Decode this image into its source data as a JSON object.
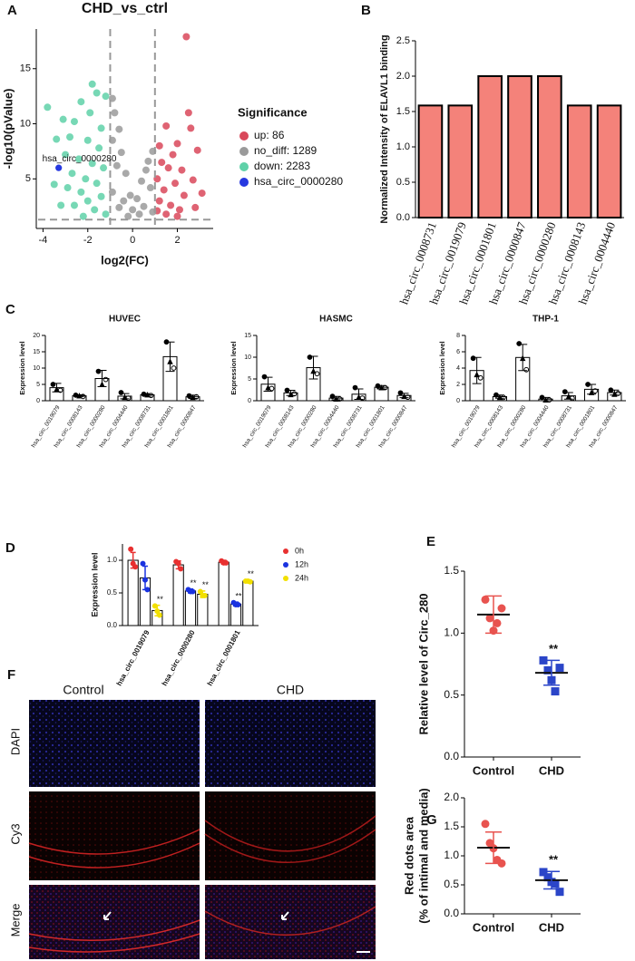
{
  "chart_data": [
    {
      "type": "scatter",
      "panel_label": "A",
      "title": "CHD_vs_ctrl",
      "xlabel": "log2(FC)",
      "ylabel": "-log10(pValue)",
      "legend_title": "Significance",
      "xlim": [
        -4.3,
        3.6
      ],
      "ylim": [
        0.5,
        18.6
      ],
      "xticks": [
        -4,
        -2,
        0,
        2
      ],
      "yticks": [
        5,
        10,
        15
      ],
      "thresholds": {
        "x": [
          -1,
          1
        ],
        "y": 1.3
      },
      "annotation": "hsa_circ_0000280",
      "series": [
        {
          "name": "up: 86",
          "color": "#d9485a",
          "x": [
            2.4,
            2.5,
            2.6,
            1.5,
            1.2,
            2.0,
            1.8,
            2.9,
            1.3,
            1.6,
            2.2,
            1.1,
            1.9,
            2.7,
            1.4,
            2.3,
            3.1,
            1.2,
            1.7,
            2.1,
            2.8,
            1.5,
            1.1,
            2.0
          ],
          "y": [
            17.9,
            11,
            9.6,
            9.8,
            8,
            8.2,
            7.2,
            7.6,
            6.5,
            6,
            5.8,
            5,
            4.6,
            4.9,
            4,
            3.5,
            3.7,
            3,
            2.6,
            2.2,
            2.4,
            1.8,
            2.1,
            1.6
          ]
        },
        {
          "name": "no_diff: 1289",
          "color": "#9a9a9a",
          "x": [
            -0.9,
            -0.8,
            -0.6,
            -0.9,
            -0.5,
            -0.3,
            -0.7,
            -0.1,
            0.2,
            0.4,
            0.7,
            0.9,
            0.6,
            0.8,
            -0.4,
            0.0,
            0.3,
            -0.2,
            0.5,
            -0.6,
            0.9,
            -0.9
          ],
          "y": [
            12.3,
            11,
            9.5,
            8.5,
            7.4,
            5.5,
            6.2,
            3.5,
            3.2,
            4.8,
            6.6,
            7.5,
            5.8,
            4.2,
            3,
            2.2,
            1.8,
            1.6,
            2.5,
            2.4,
            2,
            3.8
          ]
        },
        {
          "name": "down: 2283",
          "color": "#5fd1a8",
          "x": [
            -1.8,
            -1.6,
            -2.3,
            -1.2,
            -3.8,
            -3.1,
            -2.6,
            -1.9,
            -1.4,
            -3.4,
            -2.8,
            -2.0,
            -1.5,
            -3.0,
            -2.4,
            -1.8,
            -1.3,
            -2.7,
            -2.1,
            -1.6,
            -3.5,
            -2.9,
            -2.3,
            -1.4,
            -2.0,
            -2.6,
            -1.7,
            -3.2,
            -1.2,
            -2.2
          ],
          "y": [
            13.6,
            12.8,
            12,
            12.5,
            11.5,
            10.4,
            10.2,
            11,
            9.6,
            8.6,
            8.8,
            8.5,
            7.8,
            7.2,
            6.8,
            6.4,
            6,
            5.5,
            5,
            4.6,
            4.5,
            4.2,
            3.8,
            3.4,
            3,
            2.6,
            2.2,
            2.6,
            1.8,
            1.6
          ]
        },
        {
          "name": "hsa_circ_0000280",
          "color": "#2638e0",
          "x": [
            -3.3
          ],
          "y": [
            6.0
          ]
        }
      ]
    },
    {
      "type": "bar",
      "panel_label": "B",
      "ylabel": "Normalized Intensity of ELAVL1 binding",
      "color": "#f4827a",
      "edgecolor": "#000000",
      "categories": [
        "hsa_circ_0008731",
        "hsa_circ_0019079",
        "hsa_circ_0001801",
        "hsa_circ_0000847",
        "hsa_circ_0000280",
        "hsa_circ_0008143",
        "hsa_circ_0004440"
      ],
      "values": [
        1.585,
        1.585,
        2,
        2,
        2,
        1.585,
        1.585
      ],
      "ylim": [
        0,
        2.5
      ],
      "yticks": [
        {
          "value": 0,
          "label": "0.0"
        },
        0.5,
        {
          "value": 1,
          "label": "1.0"
        },
        1.5,
        {
          "value": 2,
          "label": "2.0"
        },
        2.5
      ]
    },
    {
      "type": "bar",
      "panel_label": "C",
      "title": "HUVEC",
      "ylabel": "Expression level",
      "color": "#ffffff",
      "edgecolor": "#000000",
      "categories": [
        "hsa_circ_0019079",
        "hsa_circ_0008143",
        "hsa_circ_0000280",
        "hsa_circ_0004440",
        "hsa_circ_0008731",
        "hsa_circ_0001801",
        "hsa_circ_0000847"
      ],
      "values": [
        4,
        1.5,
        6.8,
        1.4,
        1.8,
        13.5,
        1.2
      ],
      "errors": [
        1.3,
        0.3,
        2.5,
        0.8,
        0.4,
        4.5,
        0.5
      ],
      "points": [
        [
          5,
          3.5,
          3.2
        ],
        [
          1.7,
          1.5,
          1.3
        ],
        [
          9,
          5,
          6.5
        ],
        [
          2.5,
          1,
          0.8
        ],
        [
          2,
          1.8,
          1.6
        ],
        [
          18,
          12,
          10
        ],
        [
          1.5,
          1,
          1.2
        ]
      ],
      "ylim": [
        0,
        20
      ],
      "yticks": [
        0,
        5,
        10,
        15,
        20
      ]
    },
    {
      "type": "bar",
      "title": "HASMC",
      "ylabel": "Expression level",
      "color": "#ffffff",
      "edgecolor": "#000000",
      "categories": [
        "hsa_circ_0019079",
        "hsa_circ_0008143",
        "hsa_circ_0000280",
        "hsa_circ_0004440",
        "hsa_circ_0008731",
        "hsa_circ_0001801",
        "hsa_circ_0000847"
      ],
      "values": [
        3.8,
        1.8,
        7.6,
        0.6,
        1.5,
        3.1,
        1.2
      ],
      "errors": [
        1.6,
        0.6,
        2.6,
        0.4,
        1.2,
        0.4,
        0.5
      ],
      "points": [
        [
          5.5,
          3,
          2.8
        ],
        [
          2.4,
          1.4,
          1.6
        ],
        [
          10,
          6.8,
          6.2
        ],
        [
          1,
          0.4,
          0.4
        ],
        [
          3,
          0.8,
          0.6
        ],
        [
          3.4,
          3,
          3
        ],
        [
          1.8,
          1,
          0.8
        ]
      ],
      "ylim": [
        0,
        15
      ],
      "yticks": [
        0,
        5,
        10,
        15
      ]
    },
    {
      "type": "bar",
      "title": "THP-1",
      "ylabel": "Expression level",
      "color": "#ffffff",
      "edgecolor": "#000000",
      "categories": [
        "hsa_circ_0019079",
        "hsa_circ_0008143",
        "hsa_circ_0000280",
        "hsa_circ_0004440",
        "hsa_circ_0008731",
        "hsa_circ_0001801",
        "hsa_circ_0000847"
      ],
      "values": [
        3.7,
        0.5,
        5.3,
        0.2,
        0.6,
        1.4,
        1.0
      ],
      "errors": [
        1.6,
        0.2,
        1.6,
        0.2,
        0.4,
        0.6,
        0.3
      ],
      "points": [
        [
          5.2,
          3.2,
          2.8
        ],
        [
          0.7,
          0.4,
          0.4
        ],
        [
          7,
          5.2,
          3.8
        ],
        [
          0.4,
          0.1,
          0.1
        ],
        [
          1.1,
          0.5,
          0.3
        ],
        [
          2,
          1,
          1.2
        ],
        [
          1.3,
          0.8,
          0.9
        ]
      ],
      "ylim": [
        0,
        8
      ],
      "yticks": [
        0,
        2,
        4,
        6,
        8
      ]
    },
    {
      "type": "grouped_bar",
      "panel_label": "D",
      "ylabel": "Expression level",
      "categories": [
        "hsa_circ_0019079",
        "hsa_circ_0000280",
        "hsa_circ_0001801"
      ],
      "series": [
        {
          "name": "0h",
          "color": "#e83030",
          "values": [
            1,
            0.93,
            0.97
          ],
          "errors": [
            0.12,
            0.06,
            0.03
          ],
          "points": [
            [
              1.17,
              0.95,
              0.9
            ],
            [
              0.98,
              0.95,
              0.87
            ],
            [
              0.99,
              0.96,
              0.96
            ]
          ]
        },
        {
          "name": "12h",
          "color": "#1a33e0",
          "values": [
            0.73,
            0.53,
            0.33
          ],
          "errors": [
            0.18,
            0.03,
            0.03
          ],
          "points": [
            [
              0.95,
              0.7,
              0.55
            ],
            [
              0.55,
              0.52,
              0.52
            ],
            [
              0.35,
              0.32,
              0.32
            ]
          ],
          "sig": [
            null,
            "**",
            "**"
          ]
        },
        {
          "name": "24h",
          "color": "#f2e000",
          "values": [
            0.23,
            0.48,
            0.68
          ],
          "errors": [
            0.08,
            0.05,
            0.02
          ],
          "points": [
            [
              0.3,
              0.22,
              0.16
            ],
            [
              0.52,
              0.46,
              0.46
            ],
            [
              0.68,
              0.68,
              0.67
            ]
          ],
          "sig": [
            "**",
            "**",
            "**"
          ]
        }
      ],
      "ylim": [
        0,
        1.25
      ],
      "yticks": [
        {
          "value": 0,
          "label": "0.0"
        },
        0.5,
        {
          "value": 1,
          "label": "1.0"
        }
      ]
    },
    {
      "type": "dot",
      "panel_label": "E",
      "ylabel": [
        "Relative level of Circ_280"
      ],
      "categories": [
        "Control",
        "CHD"
      ],
      "colors": [
        "#e8534f",
        "#2b45c8"
      ],
      "markers": [
        "circle",
        "square"
      ],
      "points": [
        [
          1.27,
          1.12,
          1.02,
          1.08,
          1.2
        ],
        [
          0.78,
          0.7,
          0.62,
          0.53,
          0.72
        ]
      ],
      "means": [
        1.15,
        0.68
      ],
      "sds": [
        0.15,
        0.1
      ],
      "sig": [
        null,
        "**"
      ],
      "ylim": [
        0,
        1.5
      ],
      "yticks": [
        {
          "value": 0,
          "label": "0.0"
        },
        0.5,
        {
          "value": 1,
          "label": "1.0"
        },
        1.5
      ]
    },
    {
      "type": "dot",
      "panel_label": "G",
      "ylabel": [
        "Red dots area",
        "(% of intimal and media)"
      ],
      "categories": [
        "Control",
        "CHD"
      ],
      "colors": [
        "#e8534f",
        "#2b45c8"
      ],
      "markers": [
        "circle",
        "square"
      ],
      "points": [
        [
          1.55,
          1.22,
          1.13,
          0.93,
          0.87
        ],
        [
          0.72,
          0.63,
          0.55,
          0.52,
          0.38
        ]
      ],
      "means": [
        1.14,
        0.58
      ],
      "sds": [
        0.27,
        0.15
      ],
      "sig": [
        null,
        "**"
      ],
      "ylim": [
        0,
        2
      ],
      "yticks": [
        {
          "value": 0,
          "label": "0.0"
        },
        0.5,
        {
          "value": 1,
          "label": "1.0"
        },
        1.5,
        {
          "value": 2,
          "label": "2.0"
        }
      ]
    }
  ],
  "image_panel": {
    "panel_label": "F",
    "columns": [
      "Control",
      "CHD"
    ],
    "rows": [
      "DAPI",
      "Cy3",
      "Merge"
    ]
  }
}
